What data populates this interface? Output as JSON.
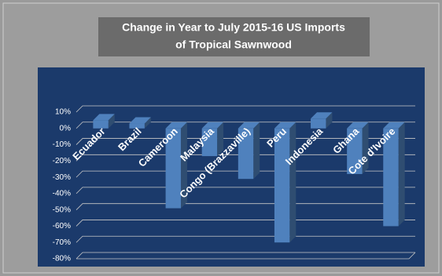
{
  "chart_data": {
    "type": "bar",
    "title": "Change in Year to July 2015-16 US Imports",
    "subtitle": "of Tropical Sawnwood",
    "categories": [
      "Ecuador",
      "Brazil",
      "Cameroon",
      "Malaysia",
      "Congo (Brazzaville)",
      "Peru",
      "Indonesia",
      "Ghana",
      "Cote d'Ivoire"
    ],
    "values": [
      5,
      3,
      -49,
      -17,
      -31,
      -70,
      6,
      -28,
      -60
    ],
    "color": "#4f81bd",
    "ylim": [
      -80,
      10
    ],
    "yticks": [
      {
        "value": 10,
        "label": "10%"
      },
      {
        "value": 0,
        "label": "0%"
      },
      {
        "value": -10,
        "label": "-10%"
      },
      {
        "value": -20,
        "label": "-20%"
      },
      {
        "value": -30,
        "label": "-30%"
      },
      {
        "value": -40,
        "label": "-40%"
      },
      {
        "value": -50,
        "label": "-50%"
      },
      {
        "value": -60,
        "label": "-60%"
      },
      {
        "value": -70,
        "label": "-70%"
      },
      {
        "value": -80,
        "label": "-80%"
      }
    ],
    "grid": true
  }
}
